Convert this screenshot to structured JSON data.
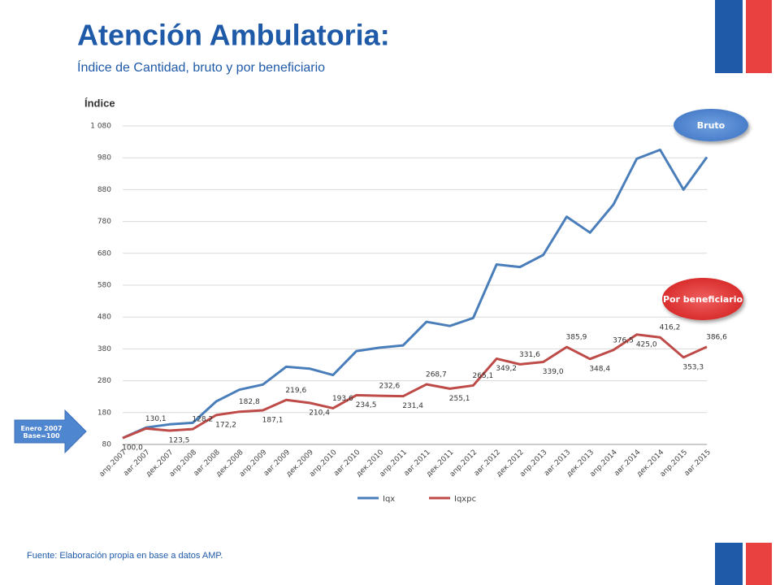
{
  "title": "Atención Ambulatoria:",
  "subtitle": "Índice de Cantidad, bruto y por beneficiario",
  "source": "Fuente: Elaboración propia en base a datos AMP.",
  "annotations": [
    "Bruto",
    "Por beneficiario",
    "Enero 2007 Base=100"
  ],
  "chart_data": {
    "type": "line",
    "y_label": "Índice",
    "categories": [
      "апр.2007",
      "авг.2007",
      "дек.2007",
      "апр.2008",
      "авг.2008",
      "дек.2008",
      "апр.2009",
      "авг.2009",
      "дек.2009",
      "апр.2010",
      "авг.2010",
      "дек.2010",
      "апр.2011",
      "авг.2011",
      "дек.2011",
      "апр.2012",
      "авг.2012",
      "дек.2012",
      "апр.2013",
      "авг.2013",
      "дек.2013",
      "апр.2014",
      "авг.2014",
      "дек.2014",
      "апр.2015",
      "авг.2015"
    ],
    "series": [
      {
        "name": "Iqx",
        "color": "#4a7ebb",
        "values": [
          100,
          133,
          143,
          148,
          215,
          252,
          268,
          324,
          318,
          298,
          373,
          384,
          391,
          465,
          452,
          477,
          645,
          637,
          675,
          795,
          745,
          833,
          977,
          1005,
          880,
          982
        ]
      },
      {
        "name": "Iqxpc",
        "color": "#be4b48",
        "values": [
          100.0,
          130.1,
          123.5,
          128.2,
          172.2,
          182.8,
          187.1,
          219.6,
          210.4,
          193.6,
          234.5,
          232.6,
          231.4,
          268.7,
          255.1,
          265.1,
          349.2,
          331.6,
          339.0,
          385.9,
          348.4,
          376.5,
          425.0,
          416.2,
          353.3,
          386.6
        ],
        "value_labels": [
          "100,0",
          "130,1",
          "123,5",
          "128,2",
          "172,2",
          "182,8",
          "187,1",
          "219,6",
          "210,4",
          "193,6",
          "234,5",
          "232,6",
          "231,4",
          "268,7",
          "255,1",
          "265,1",
          "349,2",
          "331,6",
          "339,0",
          "385,9",
          "348,4",
          "376,5",
          "425,0",
          "416,2",
          "353,3",
          "386,6"
        ]
      }
    ],
    "ylim": [
      80,
      1080
    ],
    "yticks": [
      80,
      180,
      280,
      380,
      480,
      580,
      680,
      780,
      880,
      980,
      {
        "value": 1080,
        "label": "1 080"
      }
    ],
    "grid": true,
    "legend": "bottom"
  }
}
